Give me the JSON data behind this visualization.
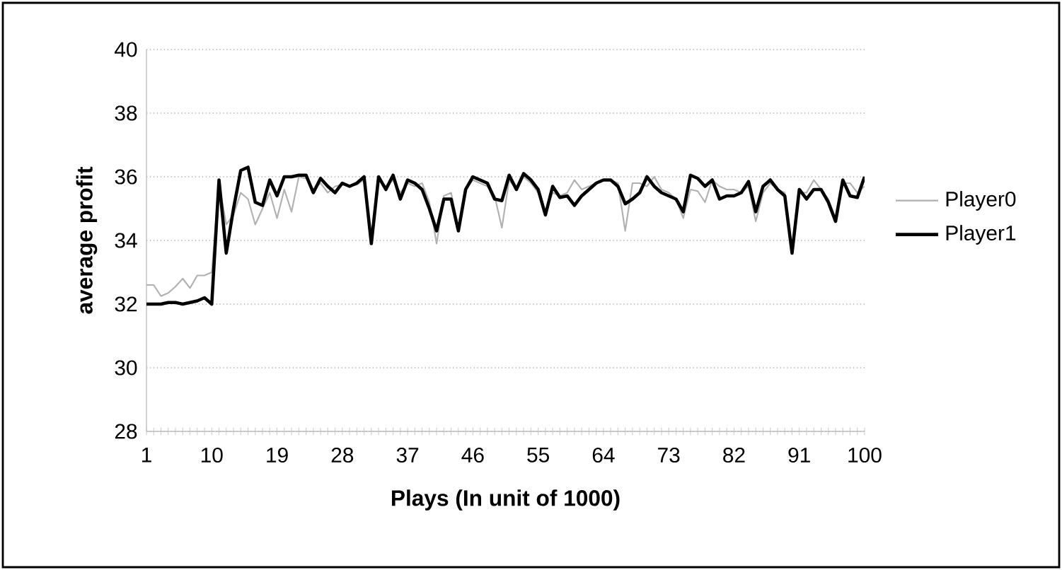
{
  "chart_data": {
    "type": "line",
    "xlabel": "Plays (In unit of 1000)",
    "ylabel": "average profit",
    "categories": [
      "1",
      null,
      null,
      null,
      null,
      null,
      null,
      null,
      null,
      "10",
      null,
      null,
      null,
      null,
      null,
      null,
      null,
      null,
      "19",
      null,
      null,
      null,
      null,
      null,
      null,
      null,
      null,
      "28",
      null,
      null,
      null,
      null,
      null,
      null,
      null,
      null,
      "37",
      null,
      null,
      null,
      null,
      null,
      null,
      null,
      null,
      "46",
      null,
      null,
      null,
      null,
      null,
      null,
      null,
      null,
      "55",
      null,
      null,
      null,
      null,
      null,
      null,
      null,
      null,
      "64",
      null,
      null,
      null,
      null,
      null,
      null,
      null,
      null,
      "73",
      null,
      null,
      null,
      null,
      null,
      null,
      null,
      null,
      "82",
      null,
      null,
      null,
      null,
      null,
      null,
      null,
      null,
      "91",
      null,
      null,
      null,
      null,
      null,
      null,
      null,
      null,
      "100"
    ],
    "series": [
      {
        "name": "Player0",
        "color": "#b0b0b0",
        "values": [
          32.6,
          32.6,
          32.25,
          32.35,
          32.55,
          32.8,
          32.5,
          32.9,
          32.9,
          33.0,
          35.8,
          34.5,
          34.8,
          35.5,
          35.3,
          34.5,
          35.0,
          35.5,
          34.7,
          35.6,
          34.9,
          36.0,
          35.95,
          35.6,
          35.8,
          35.5,
          35.7,
          35.75,
          35.7,
          35.75,
          35.9,
          34.0,
          35.9,
          35.7,
          35.9,
          35.5,
          35.8,
          35.7,
          35.8,
          35.2,
          33.9,
          35.4,
          35.5,
          34.4,
          35.6,
          35.9,
          35.8,
          35.7,
          35.4,
          34.4,
          35.9,
          35.6,
          36.0,
          35.8,
          35.5,
          34.9,
          35.5,
          35.4,
          35.5,
          35.9,
          35.6,
          35.7,
          35.8,
          35.9,
          35.9,
          35.8,
          34.3,
          35.8,
          35.8,
          35.7,
          36.0,
          35.6,
          35.5,
          35.3,
          34.7,
          35.6,
          35.55,
          35.2,
          35.9,
          35.7,
          35.6,
          35.6,
          35.5,
          35.7,
          34.6,
          35.5,
          35.8,
          35.6,
          35.5,
          33.7,
          35.5,
          35.5,
          35.9,
          35.6,
          35.3,
          34.7,
          35.8,
          35.8,
          35.5,
          35.7
        ]
      },
      {
        "name": "Player1",
        "color": "#000000",
        "values": [
          32.0,
          32.0,
          32.0,
          32.05,
          32.05,
          32.0,
          32.05,
          32.1,
          32.2,
          32.0,
          35.9,
          33.6,
          35.0,
          36.2,
          36.3,
          35.2,
          35.1,
          35.9,
          35.4,
          36.0,
          36.0,
          36.05,
          36.05,
          35.5,
          35.95,
          35.7,
          35.5,
          35.8,
          35.7,
          35.8,
          36.0,
          33.9,
          36.0,
          35.6,
          36.05,
          35.3,
          35.9,
          35.8,
          35.6,
          35.0,
          34.3,
          35.3,
          35.3,
          34.3,
          35.6,
          36.0,
          35.9,
          35.8,
          35.3,
          35.25,
          36.05,
          35.6,
          36.1,
          35.9,
          35.6,
          34.8,
          35.7,
          35.35,
          35.4,
          35.1,
          35.4,
          35.6,
          35.8,
          35.9,
          35.9,
          35.7,
          35.15,
          35.3,
          35.5,
          36.0,
          35.7,
          35.5,
          35.4,
          35.3,
          34.9,
          36.05,
          35.95,
          35.7,
          35.9,
          35.3,
          35.4,
          35.4,
          35.5,
          35.85,
          34.9,
          35.7,
          35.9,
          35.6,
          35.4,
          33.6,
          35.6,
          35.3,
          35.6,
          35.6,
          35.2,
          34.6,
          35.9,
          35.4,
          35.35,
          36.0
        ]
      }
    ],
    "ylim": [
      28,
      40
    ],
    "yticks": [
      28,
      30,
      32,
      34,
      36,
      38,
      40
    ],
    "grid": "y",
    "legend": "right"
  }
}
